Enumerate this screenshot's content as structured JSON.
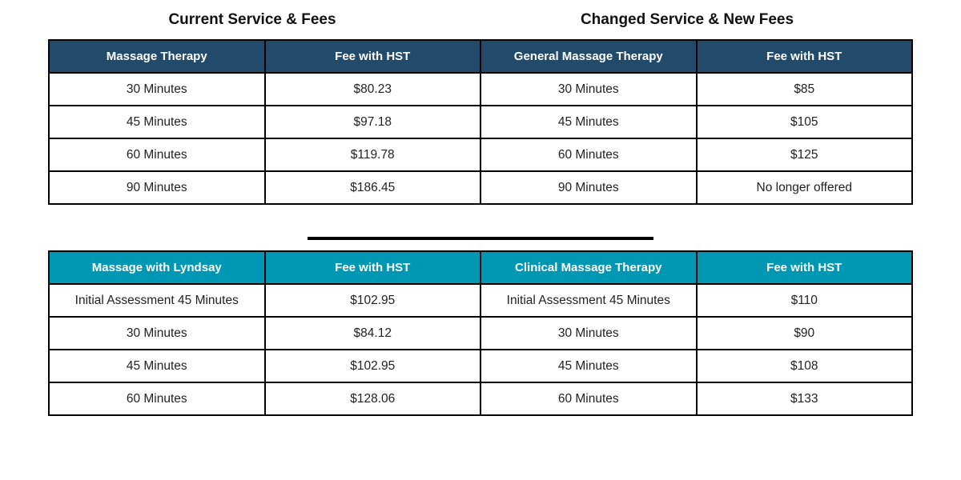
{
  "headings": {
    "current": "Current Service & Fees",
    "changed": "Changed Service & New Fees"
  },
  "colors": {
    "top_header_bg": "#224a6a",
    "bottom_header_bg": "#0097b5",
    "header_text": "#ffffff"
  },
  "top_table": {
    "headers": [
      "Massage Therapy",
      "Fee with HST",
      "General Massage Therapy",
      "Fee with HST"
    ],
    "rows": [
      [
        "30 Minutes",
        "$80.23",
        "30 Minutes",
        "$85"
      ],
      [
        "45 Minutes",
        "$97.18",
        "45 Minutes",
        "$105"
      ],
      [
        "60 Minutes",
        "$119.78",
        "60 Minutes",
        "$125"
      ],
      [
        "90 Minutes",
        "$186.45",
        "90 Minutes",
        "No longer offered"
      ]
    ]
  },
  "bottom_table": {
    "headers": [
      "Massage with Lyndsay",
      "Fee with HST",
      "Clinical Massage Therapy",
      "Fee with HST"
    ],
    "rows": [
      [
        "Initial Assessment 45 Minutes",
        "$102.95",
        "Initial Assessment 45 Minutes",
        "$110"
      ],
      [
        "30 Minutes",
        "$84.12",
        "30 Minutes",
        "$90"
      ],
      [
        "45 Minutes",
        "$102.95",
        "45 Minutes",
        "$108"
      ],
      [
        "60 Minutes",
        "$128.06",
        "60 Minutes",
        "$133"
      ]
    ]
  }
}
